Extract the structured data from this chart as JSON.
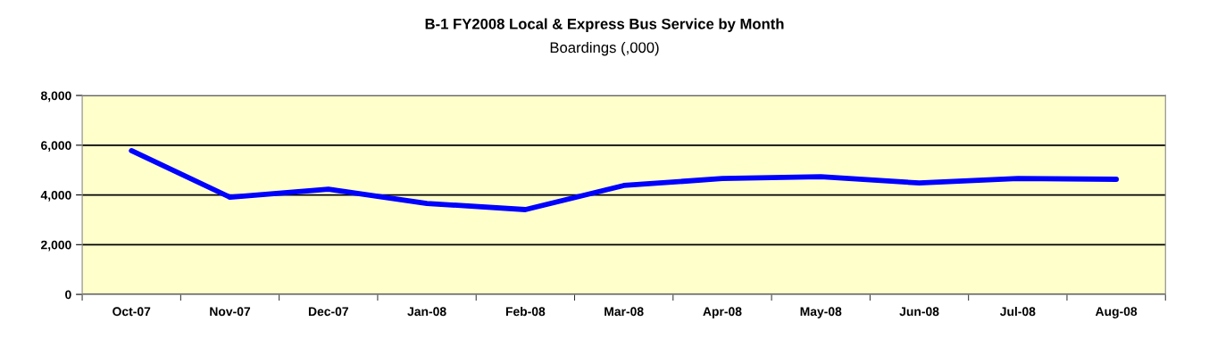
{
  "chart_data": {
    "type": "line",
    "title": "B-1 FY2008 Local & Express Bus Service by Month",
    "subtitle": "Boardings (,000)",
    "categories": [
      "Oct-07",
      "Nov-07",
      "Dec-07",
      "Jan-08",
      "Feb-08",
      "Mar-08",
      "Apr-08",
      "May-08",
      "Jun-08",
      "Jul-08",
      "Aug-08"
    ],
    "series": [
      {
        "color": "#0000ff",
        "values": [
          5780,
          3910,
          4230,
          3660,
          3410,
          4380,
          4660,
          4730,
          4480,
          4660,
          4630
        ]
      }
    ],
    "ylim": [
      0,
      8000
    ],
    "yticks": [
      {
        "value": 0,
        "label": "0"
      },
      {
        "value": 2000,
        "label": "2,000"
      },
      {
        "value": 4000,
        "label": "4,000"
      },
      {
        "value": 6000,
        "label": "6,000"
      },
      {
        "value": 8000,
        "label": "8,000"
      }
    ],
    "grid": "y",
    "marker": "none",
    "line_style": "solid"
  }
}
